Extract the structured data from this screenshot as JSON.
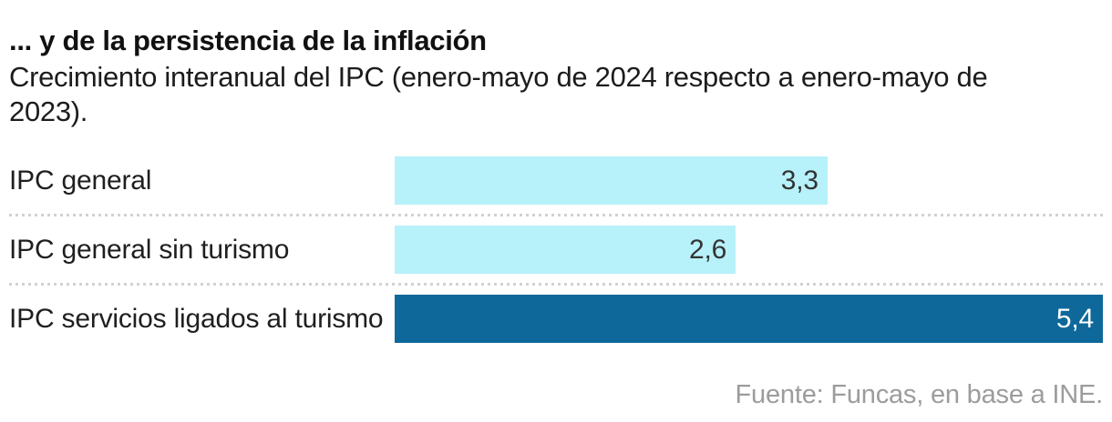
{
  "header": {
    "title": "... y de la persistencia de la inflación",
    "subtitle_lines": [
      "Crecimiento interanual del IPC (enero-mayo de 2024 respecto a enero-mayo de",
      "2023)."
    ]
  },
  "chart_data": {
    "type": "bar",
    "orientation": "horizontal",
    "title": "... y de la persistencia de la inflación",
    "subtitle": "Crecimiento interanual del IPC (enero-mayo de 2024 respecto a enero-mayo de 2023).",
    "categories": [
      "IPC general",
      "IPC general sin turismo",
      "IPC servicios ligados al turismo"
    ],
    "values": [
      3.3,
      2.6,
      5.4
    ],
    "display_values": [
      "3,3",
      "2,6",
      "5,4"
    ],
    "bar_colors": [
      "#b7f1fa",
      "#b7f1fa",
      "#0e689a"
    ],
    "value_text_colors": [
      "#333333",
      "#333333",
      "#ffffff"
    ],
    "xlim": [
      0,
      5.4
    ],
    "grid": "dotted-row-separators",
    "legend": "none",
    "value_labels_position": "inside-end"
  },
  "footer": {
    "source": "Fuente: Funcas, en base a INE."
  },
  "colors": {
    "background": "#ffffff",
    "bar_light": "#b7f1fa",
    "bar_dark": "#0e689a",
    "separator": "#d2d2d2",
    "source_text": "#9c9c9c",
    "title_text": "#111111"
  }
}
